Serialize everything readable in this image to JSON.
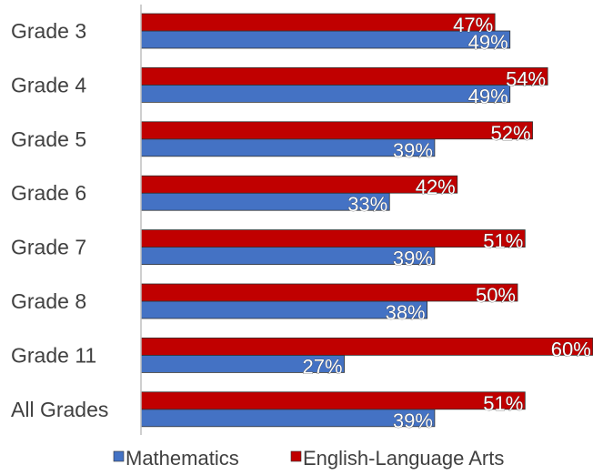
{
  "chart_data": {
    "type": "bar",
    "orientation": "horizontal",
    "categories": [
      "Grade 3",
      "Grade 4",
      "Grade 5",
      "Grade 6",
      "Grade 7",
      "Grade 8",
      "Grade 11",
      "All Grades"
    ],
    "series": [
      {
        "name": "Mathematics",
        "color": "#4472c4",
        "values": [
          49,
          49,
          39,
          33,
          39,
          38,
          27,
          39
        ],
        "value_labels": [
          "49%",
          "49%",
          "39%",
          "33%",
          "39%",
          "38%",
          "27%",
          "39%"
        ]
      },
      {
        "name": "English-Language Arts",
        "color": "#c00000",
        "values": [
          47,
          54,
          52,
          42,
          51,
          50,
          60,
          51
        ],
        "value_labels": [
          "47%",
          "54%",
          "52%",
          "42%",
          "51%",
          "50%",
          "60%",
          "51%"
        ]
      }
    ],
    "legend": "bottom"
  }
}
